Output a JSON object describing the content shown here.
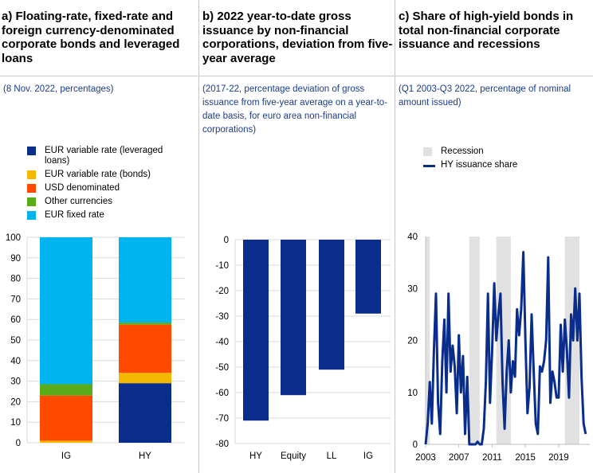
{
  "panels": {
    "a": {
      "title": "a) Floating-rate, fixed-rate and foreign currency-denominated corporate bonds and leveraged loans",
      "subtitle": "(8 Nov. 2022, percentages)"
    },
    "b": {
      "title": "b) 2022 year-to-date gross issuance by non-financial corporations, deviation from five-year average",
      "subtitle": "(2017-22, percentage deviation of gross issuance from five-year average on a year-to-date basis, for euro area non-financial corporations)"
    },
    "c": {
      "title": "c) Share of high-yield bonds in total non-financial corporate issuance and recessions",
      "subtitle": "(Q1 2003-Q3 2022, percentage of nominal amount issued)"
    }
  },
  "colors": {
    "navy": "#0a2d8c",
    "yellow": "#f5b800",
    "orange": "#ff4a00",
    "green": "#5aab19",
    "lightblue": "#00b4ef",
    "recession": "#e1e1e1",
    "grid": "#d9d9d9"
  },
  "chart_data": [
    {
      "type": "bar",
      "stacked": true,
      "categories": [
        "IG",
        "HY"
      ],
      "series": [
        {
          "name": "EUR variable rate (leveraged loans)",
          "color": "#0a2d8c",
          "values": [
            0,
            29
          ]
        },
        {
          "name": "EUR variable rate (bonds)",
          "color": "#f5b800",
          "values": [
            1,
            5
          ]
        },
        {
          "name": "USD denominated",
          "color": "#ff4a00",
          "values": [
            22,
            23.5
          ]
        },
        {
          "name": "Other currencies",
          "color": "#5aab19",
          "values": [
            5.5,
            1
          ]
        },
        {
          "name": "EUR fixed rate",
          "color": "#00b4ef",
          "values": [
            71.5,
            41.5
          ]
        }
      ],
      "legend_order": [
        0,
        1,
        2,
        3,
        4
      ],
      "ylim": [
        0,
        100
      ],
      "yticks": [
        0,
        10,
        20,
        30,
        40,
        50,
        60,
        70,
        80,
        90,
        100
      ],
      "grid": true
    },
    {
      "type": "bar",
      "categories": [
        "HY",
        "Equity",
        "LL",
        "IG"
      ],
      "values": [
        -71,
        -61,
        -51,
        -29
      ],
      "color": "#0a2d8c",
      "ylim": [
        -80,
        0
      ],
      "yticks": [
        0,
        -10,
        -20,
        -30,
        -40,
        -50,
        -60,
        -70,
        -80
      ],
      "grid": true
    },
    {
      "type": "line",
      "series": [
        {
          "name": "HY issuance share",
          "color": "#0a2d8c",
          "x_start": 2003.0,
          "step": 0.25,
          "values": [
            0,
            4,
            12,
            4,
            18,
            29,
            8,
            2,
            16,
            24,
            10,
            29,
            14,
            19,
            15,
            6,
            21,
            10,
            17,
            2,
            13,
            0,
            0,
            0,
            0,
            0.5,
            0,
            0,
            3,
            12,
            29,
            8,
            18,
            31,
            20,
            25,
            29,
            12,
            3,
            14,
            20,
            10,
            16,
            13,
            26,
            21,
            26,
            37,
            20,
            6,
            11,
            25,
            14,
            4,
            2,
            15,
            14,
            16,
            20,
            36,
            8,
            14,
            12,
            9,
            9,
            23,
            14,
            24,
            18,
            9,
            25,
            20,
            30,
            20,
            29,
            13,
            4,
            2
          ]
        }
      ],
      "recession_label": "Recession",
      "recessions": [
        [
          2003.0,
          2003.5
        ],
        [
          2008.25,
          2009.5
        ],
        [
          2011.5,
          2013.25
        ],
        [
          2019.75,
          2021.5
        ]
      ],
      "xlim": [
        2003,
        2022.75
      ],
      "xticks": [
        2003,
        2007,
        2011,
        2015,
        2019
      ],
      "ylim": [
        0,
        40
      ],
      "yticks": [
        0,
        10,
        20,
        30,
        40
      ],
      "grid": false
    }
  ]
}
